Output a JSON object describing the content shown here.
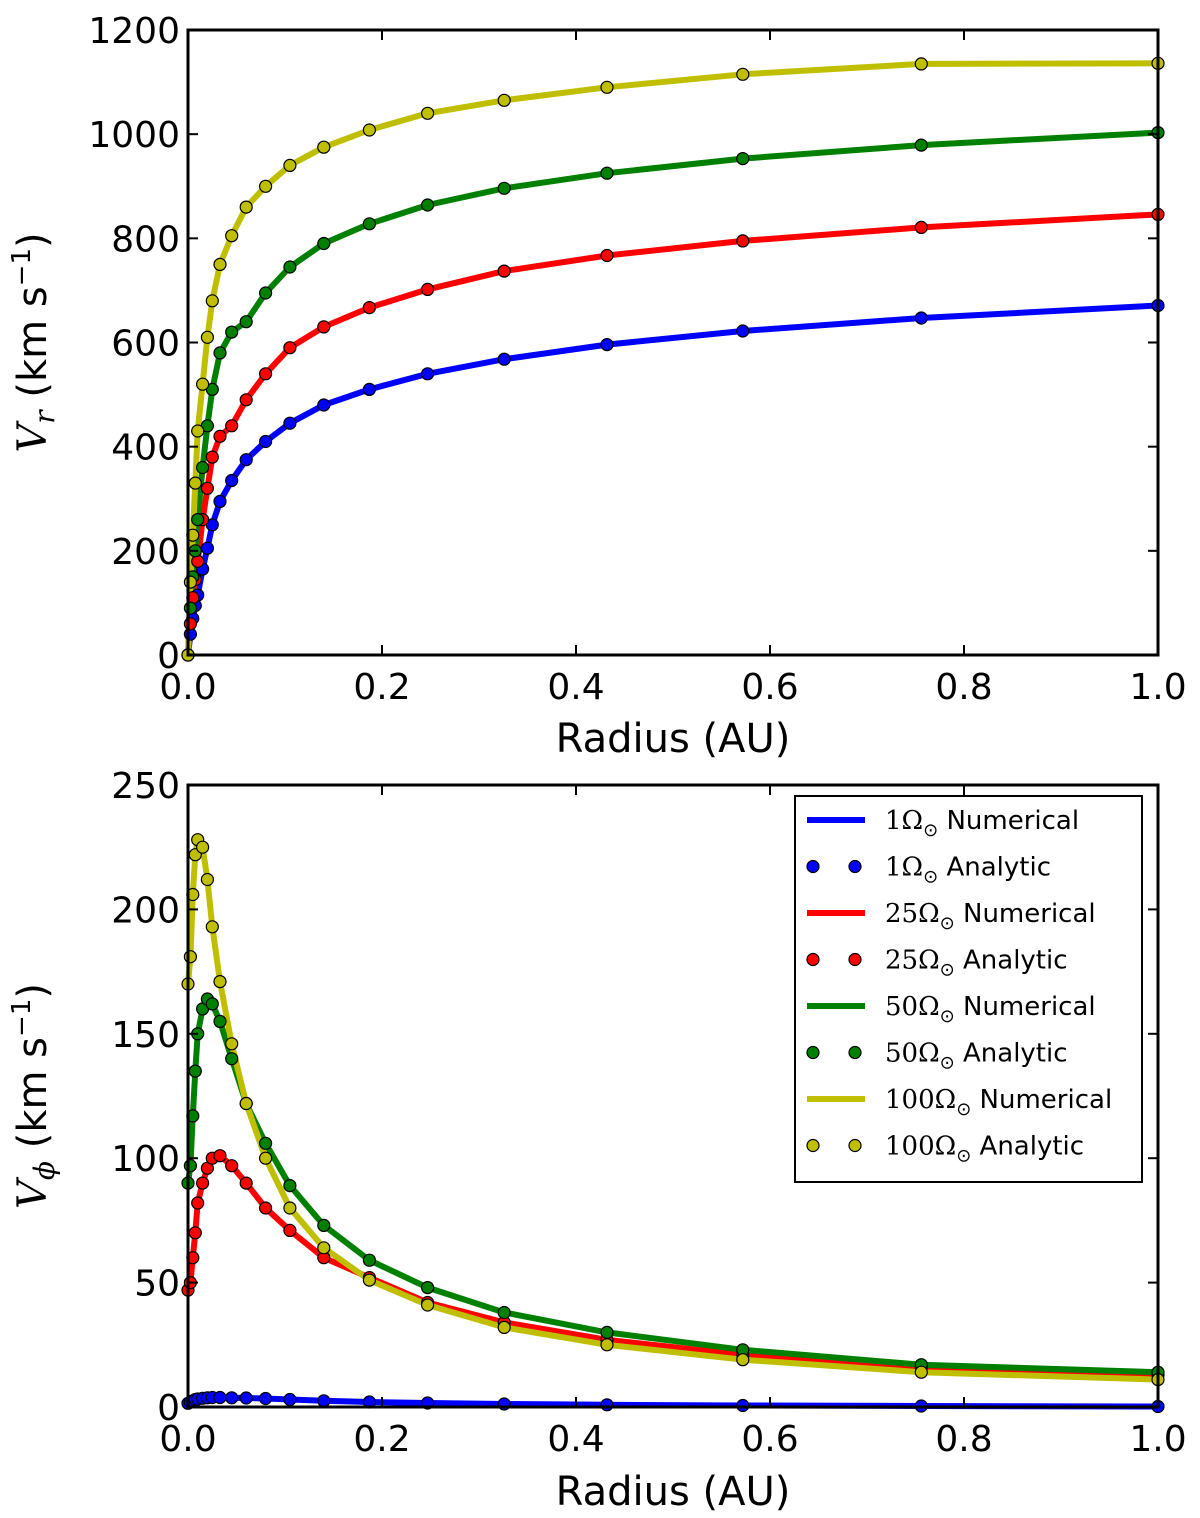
{
  "chart_data": [
    {
      "type": "line",
      "xlabel": "Radius (AU)",
      "ylabel": "V_r (km s^-1)",
      "ylabel_parts": {
        "sym": "V",
        "sub": "r",
        "paren": "(km s",
        "exp": "−1",
        "close": ")"
      },
      "xlim": [
        0.0,
        1.0
      ],
      "ylim": [
        0,
        1200
      ],
      "xticks": [
        "0.0",
        "0.2",
        "0.4",
        "0.6",
        "0.8",
        "1.0"
      ],
      "yticks": [
        "0",
        "200",
        "400",
        "600",
        "800",
        "1000",
        "1200"
      ],
      "grid": false,
      "x": [
        0.0,
        0.0025,
        0.005,
        0.0075,
        0.01,
        0.015,
        0.02,
        0.025,
        0.033,
        0.045,
        0.06,
        0.08,
        0.105,
        0.14,
        0.187,
        0.247,
        0.326,
        0.432,
        0.572,
        0.756,
        1.0
      ],
      "series": [
        {
          "color": "#0000ff",
          "values": [
            0,
            40,
            70,
            95,
            115,
            165,
            205,
            250,
            295,
            335,
            375,
            410,
            445,
            480,
            510,
            540,
            568,
            596,
            622,
            647,
            671
          ]
        },
        {
          "color": "#ff0000",
          "values": [
            0,
            60,
            110,
            145,
            180,
            260,
            320,
            380,
            420,
            440,
            490,
            540,
            590,
            630,
            667,
            702,
            737,
            767,
            795,
            821,
            846
          ]
        },
        {
          "color": "#008000",
          "values": [
            0,
            90,
            150,
            200,
            260,
            360,
            440,
            510,
            580,
            620,
            640,
            695,
            745,
            790,
            828,
            864,
            896,
            925,
            953,
            979,
            1003
          ]
        },
        {
          "color": "#bfbf00",
          "values": [
            0,
            140,
            230,
            330,
            430,
            520,
            610,
            680,
            750,
            805,
            860,
            900,
            940,
            975,
            1008,
            1040,
            1065,
            1090,
            1115,
            1135,
            1136
          ]
        }
      ]
    },
    {
      "type": "line",
      "xlabel": "Radius (AU)",
      "ylabel": "V_phi (km s^-1)",
      "ylabel_parts": {
        "sym": "V",
        "sub": "ϕ",
        "paren": "(km s",
        "exp": "−1",
        "close": ")"
      },
      "xlim": [
        0.0,
        1.0
      ],
      "ylim": [
        0,
        250
      ],
      "xticks": [
        "0.0",
        "0.2",
        "0.4",
        "0.6",
        "0.8",
        "1.0"
      ],
      "yticks": [
        "0",
        "50",
        "100",
        "150",
        "200",
        "250"
      ],
      "grid": false,
      "legend_position": "top-right",
      "legend": [
        {
          "prefix": "1",
          "suffix": " Numerical",
          "style": "line",
          "color": "#0000ff"
        },
        {
          "prefix": "1",
          "suffix": " Analytic",
          "style": "marker",
          "color": "#0000ff"
        },
        {
          "prefix": "25",
          "suffix": " Numerical",
          "style": "line",
          "color": "#ff0000"
        },
        {
          "prefix": "25",
          "suffix": " Analytic",
          "style": "marker",
          "color": "#ff0000"
        },
        {
          "prefix": "50",
          "suffix": " Numerical",
          "style": "line",
          "color": "#008000"
        },
        {
          "prefix": "50",
          "suffix": " Analytic",
          "style": "marker",
          "color": "#008000"
        },
        {
          "prefix": "100",
          "suffix": " Numerical",
          "style": "line",
          "color": "#bfbf00"
        },
        {
          "prefix": "100",
          "suffix": " Analytic",
          "style": "marker",
          "color": "#bfbf00"
        }
      ],
      "omega_symbol": "Ω",
      "sun_symbol": "⊙",
      "x": [
        0.0,
        0.0025,
        0.005,
        0.0075,
        0.01,
        0.015,
        0.02,
        0.025,
        0.033,
        0.045,
        0.06,
        0.08,
        0.105,
        0.14,
        0.187,
        0.247,
        0.326,
        0.432,
        0.572,
        0.756,
        1.0
      ],
      "series": [
        {
          "name": "1Ω⊙",
          "color": "#0000ff",
          "values": [
            1.5,
            2.0,
            2.5,
            3.0,
            3.2,
            3.5,
            3.7,
            3.8,
            3.8,
            3.7,
            3.6,
            3.4,
            3.0,
            2.5,
            2.0,
            1.6,
            1.2,
            0.9,
            0.6,
            0.4,
            0.2
          ]
        },
        {
          "name": "25Ω⊙",
          "color": "#ff0000",
          "values": [
            47,
            50,
            60,
            70,
            82,
            90,
            96,
            100,
            101,
            97,
            90,
            80,
            71,
            60,
            52,
            42,
            34,
            27,
            21,
            16,
            13
          ]
        },
        {
          "name": "50Ω⊙",
          "color": "#008000",
          "values": [
            90,
            97,
            117,
            135,
            150,
            160,
            164,
            162,
            155,
            140,
            122,
            106,
            89,
            73,
            59,
            48,
            38,
            30,
            23,
            17,
            14
          ]
        },
        {
          "name": "100Ω⊙",
          "color": "#bfbf00",
          "values": [
            170,
            181,
            206,
            222,
            228,
            225,
            212,
            193,
            171,
            146,
            122,
            100,
            80,
            64,
            51,
            41,
            32,
            25,
            19,
            14,
            11
          ]
        }
      ]
    }
  ]
}
